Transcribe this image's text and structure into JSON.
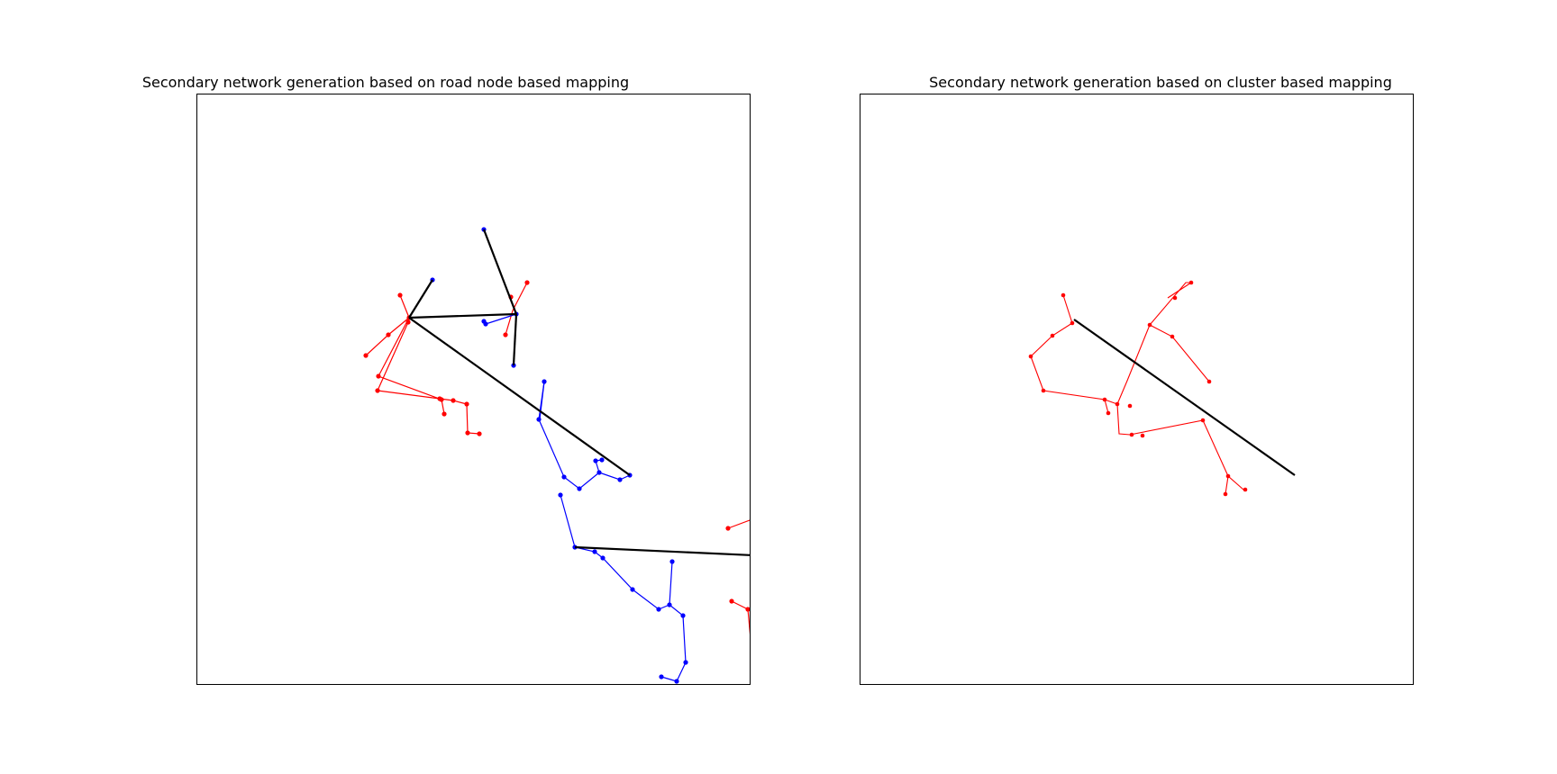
{
  "figure": {
    "panels": [
      {
        "title": "Secondary network generation based on road node based mapping",
        "axes_ticks": false
      },
      {
        "title": "Secondary network generation based on cluster based mapping",
        "axes_ticks": false
      }
    ],
    "colors": {
      "primary_network": "#000000",
      "secondary_network_1": "#ff0000",
      "secondary_network_2": "#0000ff"
    }
  }
}
